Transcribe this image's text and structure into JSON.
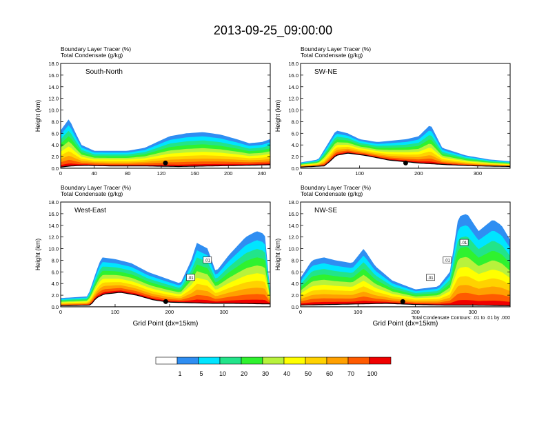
{
  "figure": {
    "title": "2013-09-25_09:00:00",
    "contour_note": "Total Condensate Contours: .01 to .01 by .000"
  },
  "colorbar": {
    "labels": [
      "1",
      "5",
      "10",
      "20",
      "30",
      "40",
      "50",
      "60",
      "70",
      "100"
    ],
    "colors": [
      "#ffffff",
      "#2f8ef2",
      "#00e5ff",
      "#22e48a",
      "#2ff22f",
      "#b8f23c",
      "#ffff00",
      "#ffd200",
      "#ffa000",
      "#ff5a00",
      "#f00000"
    ]
  },
  "chart_data": [
    {
      "type": "heatmap",
      "title": "South-North",
      "header": [
        "Boundary Layer Tracer   (%)",
        "Total Condensate   (g/kg)"
      ],
      "ylabel": "Height (km)",
      "xlabel": "",
      "xlim": [
        0,
        250
      ],
      "ylim": [
        0,
        18
      ],
      "xticks": [
        "0",
        "40",
        "80",
        "120",
        "160",
        "200",
        "240"
      ],
      "yticks": [
        "0.0",
        "2.0",
        "4.0",
        "6.0",
        "8.0",
        "10.0",
        "12.0",
        "14.0",
        "16.0",
        "18.0"
      ],
      "marker_x": 125,
      "terrain": [
        [
          0,
          0.2
        ],
        [
          12,
          0.4
        ],
        [
          30,
          0.5
        ],
        [
          60,
          0.4
        ],
        [
          100,
          0.4
        ],
        [
          140,
          0.3
        ],
        [
          180,
          0.4
        ],
        [
          220,
          0.5
        ],
        [
          250,
          0.6
        ]
      ],
      "top": [
        [
          0,
          6.5
        ],
        [
          10,
          8.5
        ],
        [
          18,
          6
        ],
        [
          25,
          4
        ],
        [
          40,
          3
        ],
        [
          60,
          3
        ],
        [
          80,
          3
        ],
        [
          100,
          3.5
        ],
        [
          115,
          4.5
        ],
        [
          130,
          5.5
        ],
        [
          150,
          6
        ],
        [
          170,
          6.2
        ],
        [
          190,
          5.8
        ],
        [
          210,
          5
        ],
        [
          225,
          4.3
        ],
        [
          240,
          4.5
        ],
        [
          250,
          5
        ]
      ]
    },
    {
      "type": "heatmap",
      "title": "SW-NE",
      "header": [
        "Boundary Layer Tracer   (%)",
        "Total Condensate   (g/kg)"
      ],
      "ylabel": "Height (km)",
      "xlabel": "",
      "xlim": [
        0,
        355
      ],
      "ylim": [
        0,
        18
      ],
      "xticks": [
        "0",
        "100",
        "200",
        "300"
      ],
      "yticks": [
        "0.0",
        "2.0",
        "4.0",
        "6.0",
        "8.0",
        "10.0",
        "12.0",
        "14.0",
        "16.0",
        "18.0"
      ],
      "marker_x": 178,
      "terrain": [
        [
          0,
          0.2
        ],
        [
          40,
          0.4
        ],
        [
          50,
          1.2
        ],
        [
          60,
          2.2
        ],
        [
          80,
          2.6
        ],
        [
          110,
          2.2
        ],
        [
          150,
          1.4
        ],
        [
          200,
          0.9
        ],
        [
          250,
          0.6
        ],
        [
          300,
          0.4
        ],
        [
          355,
          0.3
        ]
      ],
      "top": [
        [
          0,
          1
        ],
        [
          30,
          1.5
        ],
        [
          45,
          4
        ],
        [
          60,
          6.5
        ],
        [
          80,
          6
        ],
        [
          100,
          5
        ],
        [
          130,
          4.5
        ],
        [
          160,
          4.8
        ],
        [
          180,
          5
        ],
        [
          200,
          5.5
        ],
        [
          220,
          7.5
        ],
        [
          240,
          3.5
        ],
        [
          280,
          2.2
        ],
        [
          320,
          1.5
        ],
        [
          355,
          1.2
        ]
      ]
    },
    {
      "type": "heatmap",
      "title": "West-East",
      "header": [
        "Boundary Layer Tracer   (%)",
        "Total Condensate   (g/kg)"
      ],
      "ylabel": "Height (km)",
      "xlabel": "Grid Point (dx=15km)",
      "xlim": [
        0,
        385
      ],
      "ylim": [
        0,
        18
      ],
      "xticks": [
        "0",
        "100",
        "200",
        "300"
      ],
      "yticks": [
        "0.0",
        "2.0",
        "4.0",
        "6.0",
        "8.0",
        "10.0",
        "12.0",
        "14.0",
        "16.0",
        "18.0"
      ],
      "marker_x": 193,
      "terrain": [
        [
          0,
          0.2
        ],
        [
          55,
          0.3
        ],
        [
          65,
          1.5
        ],
        [
          80,
          2.2
        ],
        [
          110,
          2.5
        ],
        [
          140,
          2
        ],
        [
          170,
          1.2
        ],
        [
          200,
          0.8
        ],
        [
          240,
          0.7
        ],
        [
          280,
          0.6
        ],
        [
          320,
          0.6
        ],
        [
          385,
          0.5
        ]
      ],
      "top": [
        [
          0,
          1.5
        ],
        [
          50,
          1.8
        ],
        [
          65,
          6
        ],
        [
          75,
          8.5
        ],
        [
          100,
          8.2
        ],
        [
          130,
          7.5
        ],
        [
          160,
          6
        ],
        [
          190,
          5
        ],
        [
          220,
          4
        ],
        [
          240,
          8
        ],
        [
          250,
          11
        ],
        [
          270,
          10
        ],
        [
          285,
          6
        ],
        [
          310,
          9
        ],
        [
          340,
          12
        ],
        [
          360,
          13
        ],
        [
          375,
          12.5
        ],
        [
          385,
          2.5
        ]
      ],
      "contour_labels": [
        ".01",
        ".01"
      ]
    },
    {
      "type": "heatmap",
      "title": "NW-SE",
      "header": [
        "Boundary Layer Tracer   (%)",
        "Total Condensate   (g/kg)"
      ],
      "ylabel": "Height (km)",
      "xlabel": "Grid Point (dx=15km)",
      "xlim": [
        0,
        365
      ],
      "ylim": [
        0,
        18
      ],
      "xticks": [
        "0",
        "100",
        "200",
        "300"
      ],
      "yticks": [
        "0.0",
        "2.0",
        "4.0",
        "6.0",
        "8.0",
        "10.0",
        "12.0",
        "14.0",
        "16.0",
        "18.0"
      ],
      "marker_x": 178,
      "terrain": [
        [
          0,
          0.3
        ],
        [
          50,
          0.4
        ],
        [
          100,
          0.5
        ],
        [
          150,
          0.6
        ],
        [
          200,
          0.4
        ],
        [
          250,
          0.3
        ],
        [
          300,
          0.3
        ],
        [
          365,
          0.2
        ]
      ],
      "top": [
        [
          0,
          5
        ],
        [
          20,
          8
        ],
        [
          40,
          8.5
        ],
        [
          60,
          8
        ],
        [
          90,
          7.5
        ],
        [
          110,
          10
        ],
        [
          130,
          7
        ],
        [
          160,
          4.5
        ],
        [
          200,
          3
        ],
        [
          240,
          3.5
        ],
        [
          260,
          6
        ],
        [
          275,
          15.5
        ],
        [
          290,
          16
        ],
        [
          310,
          13
        ],
        [
          335,
          15
        ],
        [
          350,
          14
        ],
        [
          365,
          11.5
        ]
      ],
      "contour_labels": [
        ".01",
        ".01",
        ".01"
      ]
    }
  ]
}
